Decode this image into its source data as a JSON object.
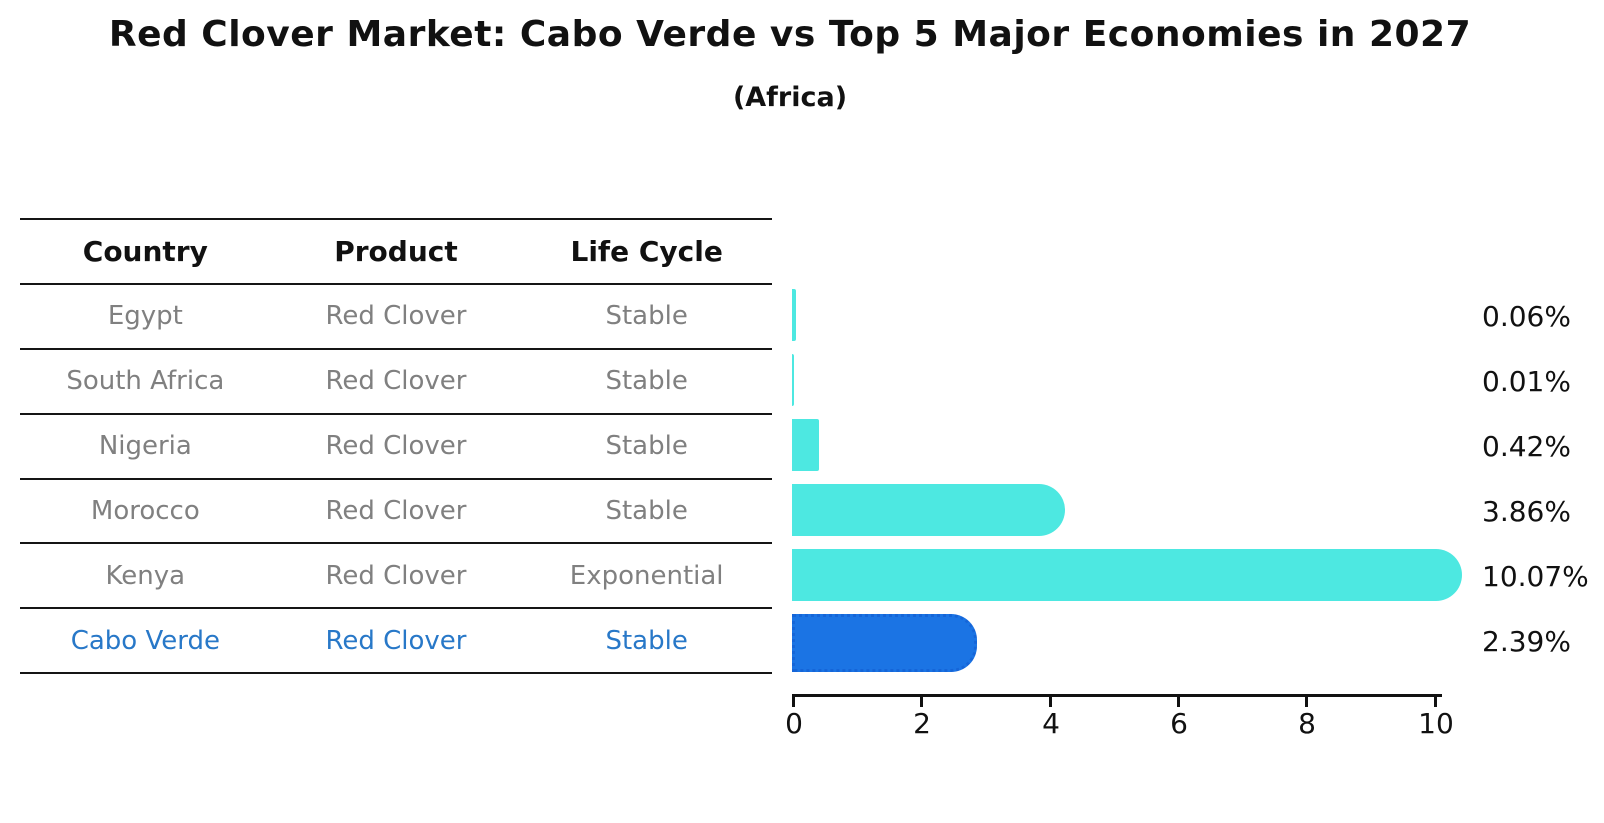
{
  "header": {
    "title": "Red Clover Market: Cabo Verde vs Top 5 Major Economies in 2027",
    "subtitle": "(Africa)"
  },
  "table": {
    "columns": [
      "Country",
      "Product",
      "Life Cycle"
    ],
    "rows": [
      {
        "country": "Egypt",
        "product": "Red Clover",
        "life_cycle": "Stable"
      },
      {
        "country": "South Africa",
        "product": "Red Clover",
        "life_cycle": "Stable"
      },
      {
        "country": "Nigeria",
        "product": "Red Clover",
        "life_cycle": "Stable"
      },
      {
        "country": "Morocco",
        "product": "Red Clover",
        "life_cycle": "Stable"
      },
      {
        "country": "Kenya",
        "product": "Red Clover",
        "life_cycle": "Exponential"
      },
      {
        "country": "Cabo Verde",
        "product": "Red Clover",
        "life_cycle": "Stable"
      }
    ]
  },
  "chart_data": {
    "type": "bar",
    "orientation": "horizontal",
    "title": "Red Clover Market: Cabo Verde vs Top 5 Major Economies in 2027",
    "subtitle": "(Africa)",
    "categories": [
      "Egypt",
      "South Africa",
      "Nigeria",
      "Morocco",
      "Kenya",
      "Cabo Verde"
    ],
    "values": [
      0.06,
      0.01,
      0.42,
      3.86,
      10.07,
      2.39
    ],
    "labels": [
      "0.06%",
      "0.01%",
      "0.42%",
      "3.86%",
      "10.07%",
      "2.39%"
    ],
    "x_ticks": [
      "0",
      "2",
      "4",
      "6",
      "8",
      "10"
    ],
    "xlim": [
      0,
      10.6
    ],
    "grid": false,
    "legend": "none",
    "highlight_index": 5,
    "bar_color": "#4DE8E1",
    "highlight_color": "#1B74E4",
    "highlight_border_color": "#1565D8"
  },
  "colors": {
    "table_text": "#808080",
    "table_header_text": "#111111",
    "highlight_text": "#2878C8",
    "axis": "#111111"
  }
}
